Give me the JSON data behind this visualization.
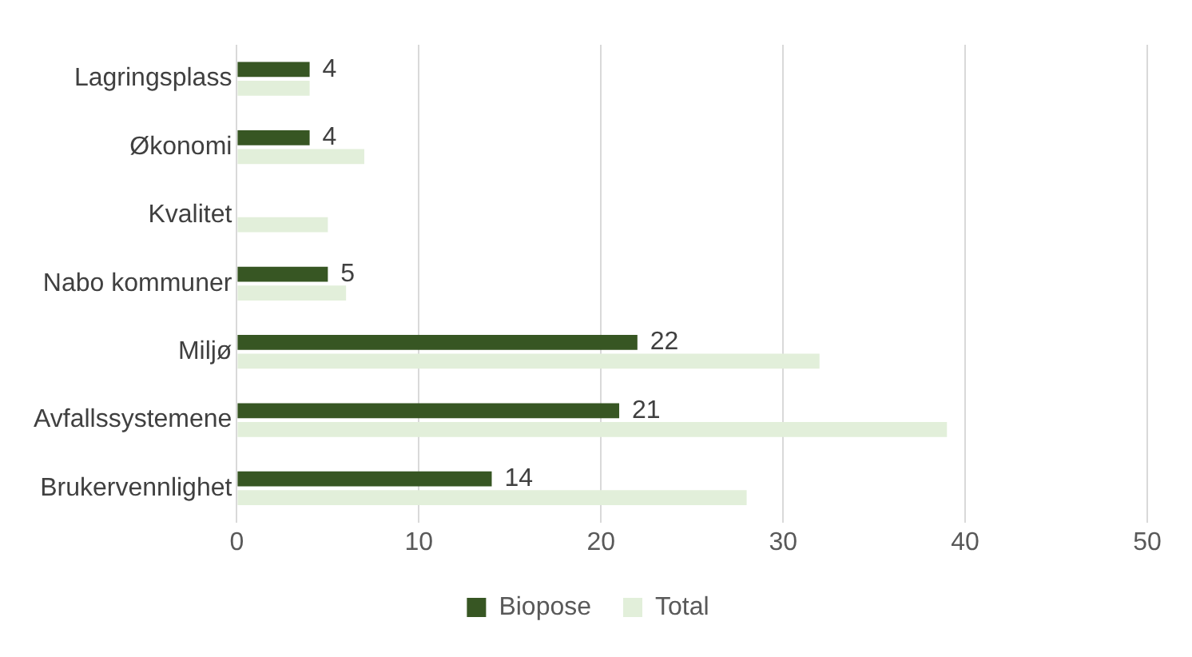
{
  "chart_data": {
    "type": "bar",
    "orientation": "horizontal",
    "categories": [
      "Lagringsplass",
      "Økonomi",
      "Kvalitet",
      "Nabo kommuner",
      "Miljø",
      "Avfallssystemene",
      "Brukervennlighet"
    ],
    "series": [
      {
        "name": "Biopose",
        "color": "#375623",
        "values": [
          4,
          4,
          null,
          5,
          22,
          21,
          14
        ],
        "value_labels": [
          "4",
          "4",
          null,
          "5",
          "22",
          "21",
          "14"
        ]
      },
      {
        "name": "Total",
        "color": "#e2efda",
        "values": [
          4,
          7,
          5,
          6,
          32,
          39,
          28
        ]
      }
    ],
    "xlim": [
      0,
      50
    ],
    "xticks": [
      0,
      10,
      20,
      30,
      40,
      50
    ],
    "grid": "x",
    "legend": "bottom"
  }
}
